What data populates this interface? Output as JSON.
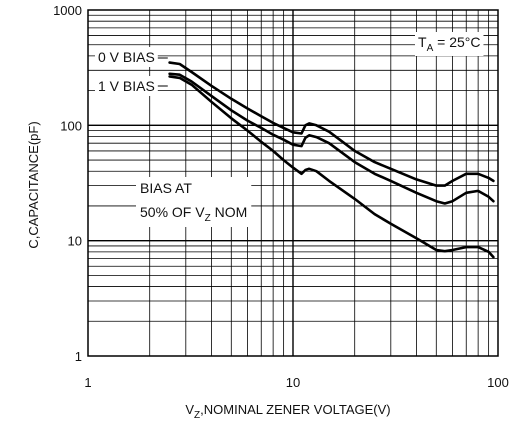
{
  "chart_data": {
    "type": "line",
    "x_scale": "log",
    "y_scale": "log",
    "xlim": [
      1,
      100
    ],
    "ylim": [
      1,
      1000
    ],
    "grid": true,
    "xlabel": {
      "main_prefix": "V",
      "main_sub": "Z",
      "main_suffix": ",NOMINAL ZENER VOLTAGE(V)"
    },
    "ylabel": "C,CAPACITANCE(pF)",
    "x_ticks": [
      {
        "value": 1,
        "label": "1"
      },
      {
        "value": 10,
        "label": "10"
      },
      {
        "value": 100,
        "label": "100"
      }
    ],
    "y_ticks": [
      {
        "value": 1,
        "label": "1"
      },
      {
        "value": 10,
        "label": "10"
      },
      {
        "value": 100,
        "label": "100"
      },
      {
        "value": 1000,
        "label": "1000"
      }
    ],
    "annotations": {
      "temp_prefix": "T",
      "temp_sub": "A",
      "temp_suffix": " = 25°C",
      "bias0": "0 V BIAS",
      "bias1": "1 V BIAS",
      "bias50_line1": "BIAS AT",
      "bias50_line2_prefix": "50% OF V",
      "bias50_line2_sub": "Z",
      "bias50_line2_suffix": " NOM"
    },
    "series": [
      {
        "name": "0 V BIAS",
        "points": [
          [
            2.5,
            350
          ],
          [
            2.8,
            340
          ],
          [
            3.2,
            290
          ],
          [
            4,
            220
          ],
          [
            5,
            170
          ],
          [
            6,
            140
          ],
          [
            7,
            120
          ],
          [
            8,
            105
          ],
          [
            9,
            95
          ],
          [
            10,
            87
          ],
          [
            11,
            85
          ],
          [
            11.5,
            100
          ],
          [
            12,
            104
          ],
          [
            13,
            100
          ],
          [
            15,
            88
          ],
          [
            20,
            60
          ],
          [
            25,
            48
          ],
          [
            30,
            42
          ],
          [
            40,
            34
          ],
          [
            50,
            30
          ],
          [
            55,
            30
          ],
          [
            60,
            33
          ],
          [
            70,
            38
          ],
          [
            80,
            38
          ],
          [
            90,
            35
          ],
          [
            95,
            33
          ]
        ]
      },
      {
        "name": "1 V BIAS",
        "points": [
          [
            2.5,
            280
          ],
          [
            2.8,
            275
          ],
          [
            3.2,
            240
          ],
          [
            4,
            180
          ],
          [
            5,
            135
          ],
          [
            6,
            110
          ],
          [
            7,
            95
          ],
          [
            8,
            83
          ],
          [
            9,
            75
          ],
          [
            10,
            68
          ],
          [
            11,
            66
          ],
          [
            11.5,
            78
          ],
          [
            12,
            82
          ],
          [
            13,
            79
          ],
          [
            15,
            70
          ],
          [
            20,
            48
          ],
          [
            25,
            38
          ],
          [
            30,
            33
          ],
          [
            40,
            26
          ],
          [
            50,
            22
          ],
          [
            55,
            21
          ],
          [
            60,
            22
          ],
          [
            70,
            26
          ],
          [
            80,
            27
          ],
          [
            90,
            24
          ],
          [
            95,
            22
          ]
        ]
      },
      {
        "name": "BIAS AT 50% OF VZ NOM",
        "points": [
          [
            2.5,
            265
          ],
          [
            2.8,
            258
          ],
          [
            3.2,
            225
          ],
          [
            4,
            160
          ],
          [
            5,
            115
          ],
          [
            6,
            90
          ],
          [
            7,
            72
          ],
          [
            8,
            60
          ],
          [
            9,
            50
          ],
          [
            10,
            43
          ],
          [
            11,
            38
          ],
          [
            11.5,
            41
          ],
          [
            12,
            42
          ],
          [
            13,
            40
          ],
          [
            15,
            33
          ],
          [
            20,
            23
          ],
          [
            25,
            17
          ],
          [
            30,
            14
          ],
          [
            40,
            10.5
          ],
          [
            50,
            8.3
          ],
          [
            55,
            8.1
          ],
          [
            60,
            8.3
          ],
          [
            70,
            8.8
          ],
          [
            80,
            8.8
          ],
          [
            90,
            8.0
          ],
          [
            95,
            7.2
          ]
        ]
      }
    ]
  }
}
